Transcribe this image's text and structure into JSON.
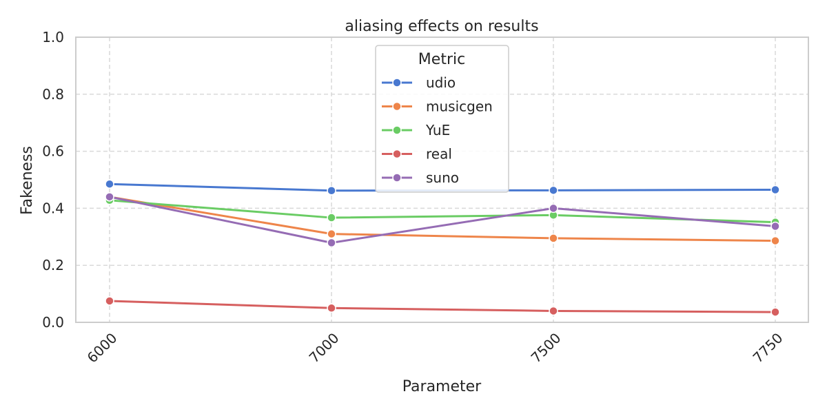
{
  "chart_data": {
    "type": "line",
    "title": "aliasing effects on results",
    "xlabel": "Parameter",
    "ylabel": "Fakeness",
    "categories": [
      "6000",
      "7000",
      "7500",
      "7750"
    ],
    "ylim": [
      0,
      1.0
    ],
    "yticks": [
      "0.0",
      "0.2",
      "0.4",
      "0.6",
      "0.8",
      "1.0"
    ],
    "grid": true,
    "legend": {
      "title": "Metric",
      "placement": "top-center"
    },
    "series": [
      {
        "name": "udio",
        "color": "#4878d0",
        "values": [
          0.485,
          0.462,
          0.463,
          0.465
        ]
      },
      {
        "name": "musicgen",
        "color": "#ee854a",
        "values": [
          0.44,
          0.31,
          0.295,
          0.286
        ]
      },
      {
        "name": "YuE",
        "color": "#6acc64",
        "values": [
          0.428,
          0.367,
          0.376,
          0.351
        ]
      },
      {
        "name": "real",
        "color": "#d65f5f",
        "values": [
          0.075,
          0.05,
          0.04,
          0.036
        ]
      },
      {
        "name": "suno",
        "color": "#956cb4",
        "values": [
          0.44,
          0.279,
          0.4,
          0.337
        ]
      }
    ]
  }
}
